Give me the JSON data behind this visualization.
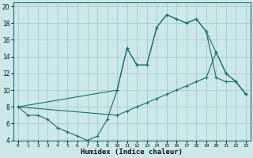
{
  "xlabel": "Humidex (Indice chaleur)",
  "bg_color": "#cce8e8",
  "grid_color": "#aacfcf",
  "line_color": "#1a6e6e",
  "xlim": [
    -0.5,
    23.5
  ],
  "ylim": [
    4,
    20.5
  ],
  "xticks": [
    0,
    1,
    2,
    3,
    4,
    5,
    6,
    7,
    8,
    9,
    10,
    11,
    12,
    13,
    14,
    15,
    16,
    17,
    18,
    19,
    20,
    21,
    22,
    23
  ],
  "yticks": [
    4,
    6,
    8,
    10,
    12,
    14,
    16,
    18,
    20
  ],
  "line1_x": [
    0,
    1,
    2,
    3,
    4,
    5,
    6,
    7,
    8,
    9,
    10,
    11,
    12,
    13,
    14,
    15,
    16,
    17,
    18,
    19,
    20,
    21,
    22,
    23
  ],
  "line1_y": [
    8,
    7,
    7,
    6.5,
    5.5,
    5,
    4.5,
    4,
    4.5,
    6.5,
    10,
    15,
    13,
    13,
    17.5,
    19,
    18.5,
    18,
    18.5,
    17,
    11.5,
    11,
    11,
    9.5
  ],
  "line2_x": [
    0,
    10,
    11,
    12,
    13,
    14,
    15,
    16,
    17,
    18,
    19,
    20,
    21,
    22,
    23
  ],
  "line2_y": [
    8,
    10,
    15,
    13,
    13,
    17.5,
    19,
    18.5,
    18,
    18.5,
    17,
    14.5,
    12,
    11,
    9.5
  ],
  "line3_x": [
    0,
    10,
    11,
    12,
    13,
    14,
    15,
    16,
    17,
    18,
    19,
    20,
    21,
    22,
    23
  ],
  "line3_y": [
    8,
    7,
    7.5,
    8,
    8.5,
    9,
    9.5,
    10,
    10.5,
    11,
    11.5,
    14.5,
    12,
    11,
    9.5
  ]
}
